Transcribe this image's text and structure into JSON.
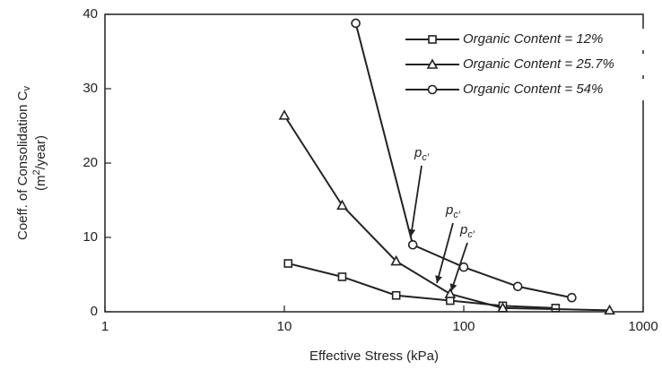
{
  "chart_data": {
    "type": "line",
    "xlabel": "Effective Stress (kPa)",
    "ylabel": {
      "line1": "Coeff. of Consolidation C",
      "line1_sub": "v",
      "line2_pre": "(m",
      "line2_sup": "2",
      "line2_post": "/year)"
    },
    "xscale": "log",
    "xlim": [
      1,
      1000
    ],
    "xticks": [
      1,
      10,
      100,
      1000
    ],
    "ylim": [
      0,
      40
    ],
    "yticks": [
      0,
      10,
      20,
      30,
      40
    ],
    "legend": "upper right",
    "series": [
      {
        "name": "Organic Content = 12%",
        "color": "#222222",
        "marker": "square",
        "x": [
          10.5,
          21,
          42,
          84,
          165,
          325
        ],
        "values": [
          6.5,
          4.7,
          2.2,
          1.5,
          0.8,
          0.5
        ]
      },
      {
        "name": "Organic Content = 25.7%",
        "color": "#222222",
        "marker": "triangle",
        "x": [
          10,
          21,
          42,
          84,
          165,
          650
        ],
        "values": [
          26.4,
          14.3,
          6.8,
          2.4,
          0.5,
          0.2
        ]
      },
      {
        "name": "Organic Content = 54%",
        "color": "#222222",
        "marker": "circle",
        "x": [
          25,
          52,
          100,
          200,
          400
        ],
        "values": [
          38.8,
          9,
          6,
          3.4,
          1.9
        ]
      }
    ],
    "annotations": [
      {
        "label": "p",
        "subscript": "c′"
      },
      {
        "label": "p",
        "subscript": "c′"
      },
      {
        "label": "p",
        "subscript": "c′"
      }
    ]
  }
}
